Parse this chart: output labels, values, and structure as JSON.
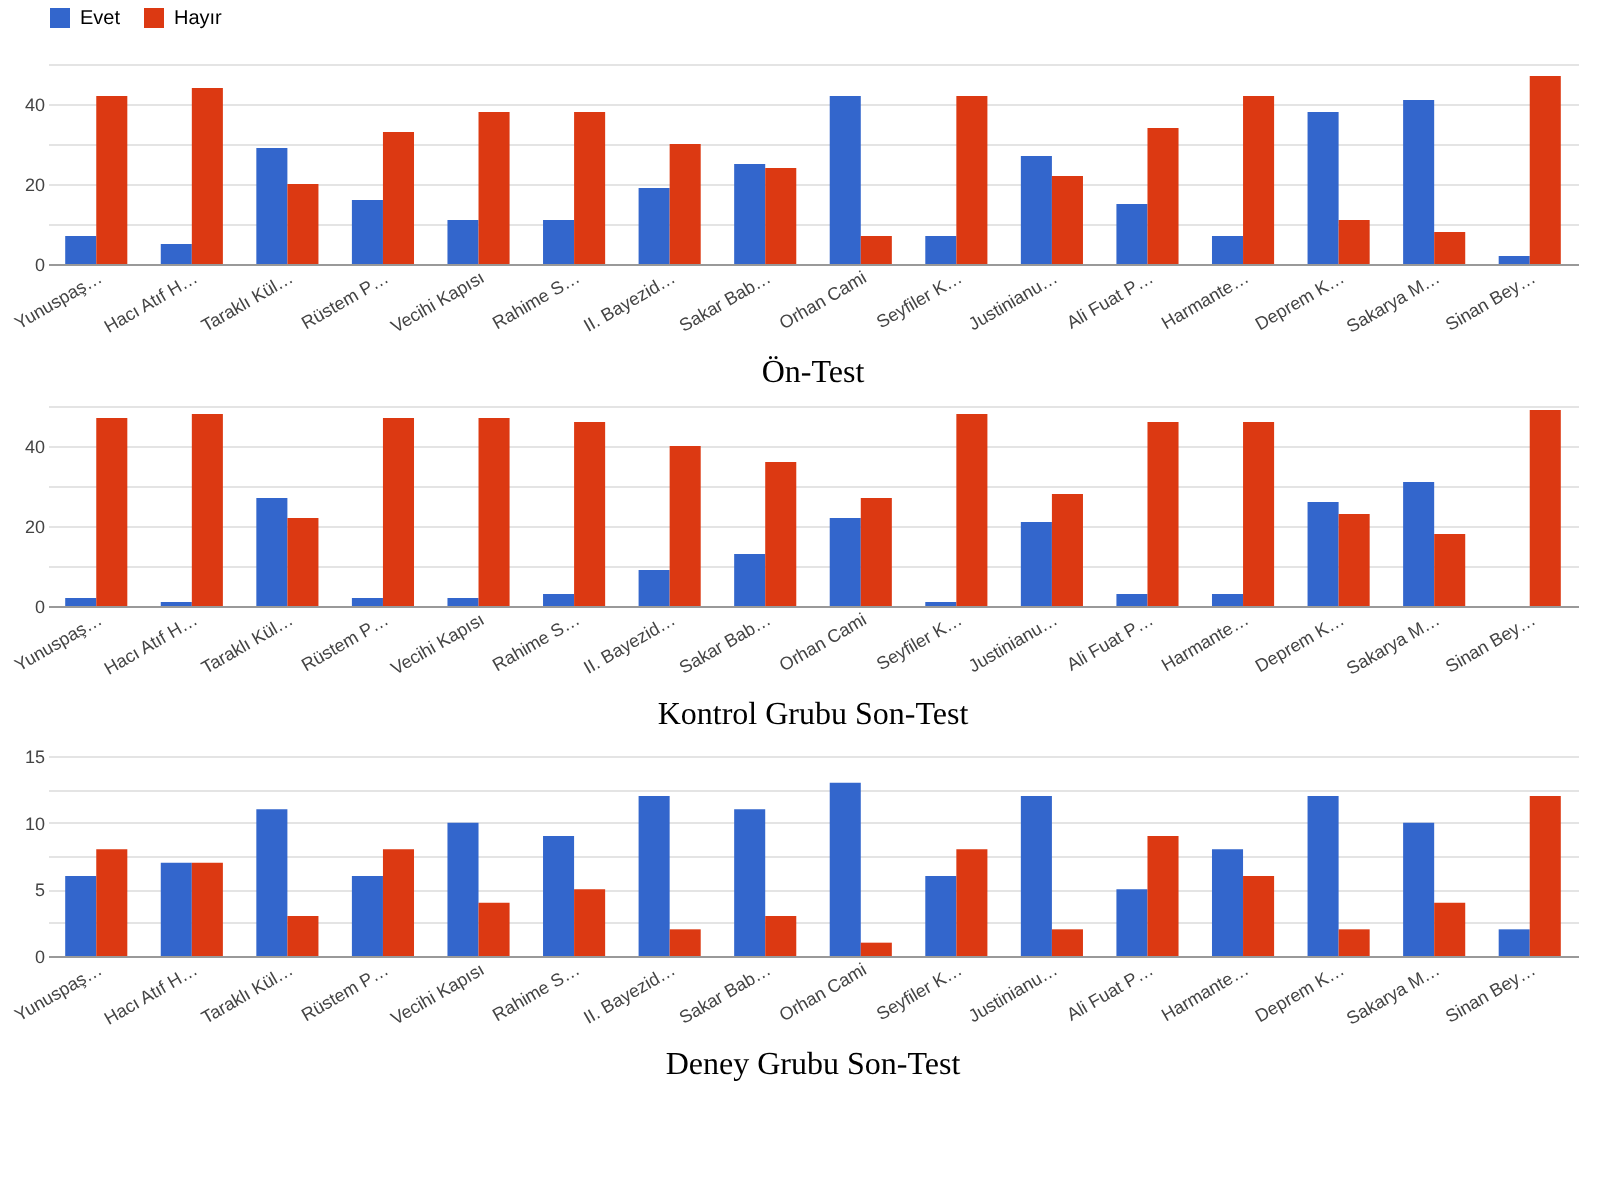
{
  "chart_data": [
    {
      "type": "bar",
      "title": "Ön-Test",
      "categories": [
        "Yunuspaş…",
        "Hacı Atıf H…",
        "Taraklı Kül…",
        "Rüstem P…",
        "Vecihi Kapısı",
        "Rahime S…",
        "II. Bayezid…",
        "Sakar Bab…",
        "Orhan Cami",
        "Seyfiler K…",
        "Justinianu…",
        "Ali Fuat P…",
        "Harmante…",
        "Deprem K…",
        "Sakarya M…",
        "Sinan Bey…"
      ],
      "series": [
        {
          "name": "Evet",
          "color": "#3366cc",
          "values": [
            7,
            5,
            29,
            16,
            11,
            11,
            19,
            25,
            42,
            7,
            27,
            15,
            7,
            38,
            41,
            2
          ]
        },
        {
          "name": "Hayır",
          "color": "#dc3912",
          "values": [
            42,
            44,
            20,
            33,
            38,
            38,
            30,
            24,
            7,
            42,
            22,
            34,
            42,
            11,
            8,
            47
          ]
        }
      ],
      "ylim": [
        0,
        50
      ],
      "yticks": [
        0,
        {
          "value": 10,
          "label": null
        },
        20,
        {
          "value": 30,
          "label": null
        },
        40,
        {
          "value": 50,
          "label": null
        }
      ],
      "grid": "y",
      "legend": "top left"
    },
    {
      "type": "bar",
      "title": "Kontrol Grubu Son-Test",
      "categories": [
        "Yunuspaş…",
        "Hacı Atıf H…",
        "Taraklı Kül…",
        "Rüstem P…",
        "Vecihi Kapısı",
        "Rahime S…",
        "II. Bayezid…",
        "Sakar Bab…",
        "Orhan Cami",
        "Seyfiler K…",
        "Justinianu…",
        "Ali Fuat P…",
        "Harmante…",
        "Deprem K…",
        "Sakarya M…",
        "Sinan Bey…"
      ],
      "series": [
        {
          "name": "Evet",
          "color": "#3366cc",
          "values": [
            2,
            1,
            27,
            2,
            2,
            3,
            9,
            13,
            22,
            1,
            21,
            3,
            3,
            26,
            31,
            0
          ]
        },
        {
          "name": "Hayır",
          "color": "#dc3912",
          "values": [
            47,
            48,
            22,
            47,
            47,
            46,
            40,
            36,
            27,
            48,
            28,
            46,
            46,
            23,
            18,
            49
          ]
        }
      ],
      "ylim": [
        0,
        50
      ],
      "yticks": [
        0,
        {
          "value": 10,
          "label": null
        },
        20,
        {
          "value": 30,
          "label": null
        },
        40,
        {
          "value": 50,
          "label": null
        }
      ],
      "grid": "y",
      "legend": "top left"
    },
    {
      "type": "bar",
      "title": "Deney Grubu Son-Test",
      "categories": [
        "Yunuspaş…",
        "Hacı Atıf H…",
        "Taraklı Kül…",
        "Rüstem P…",
        "Vecihi Kapısı",
        "Rahime S…",
        "II. Bayezid…",
        "Sakar Bab…",
        "Orhan Cami",
        "Seyfiler K…",
        "Justinianu…",
        "Ali Fuat P…",
        "Harmante…",
        "Deprem K…",
        "Sakarya M…",
        "Sinan Bey…"
      ],
      "series": [
        {
          "name": "Evet",
          "color": "#3366cc",
          "values": [
            6,
            7,
            11,
            6,
            10,
            9,
            12,
            11,
            13,
            6,
            12,
            5,
            8,
            12,
            10,
            2
          ]
        },
        {
          "name": "Hayır",
          "color": "#dc3912",
          "values": [
            8,
            7,
            3,
            8,
            4,
            5,
            2,
            3,
            1,
            8,
            2,
            9,
            6,
            2,
            4,
            12
          ]
        }
      ],
      "ylim": [
        0,
        15
      ],
      "yticks": [
        0,
        {
          "value": 2.5,
          "label": null
        },
        5,
        {
          "value": 7.5,
          "label": null
        },
        10,
        {
          "value": 12.5,
          "label": null
        },
        15
      ],
      "grid": "y",
      "legend": "top left"
    }
  ]
}
